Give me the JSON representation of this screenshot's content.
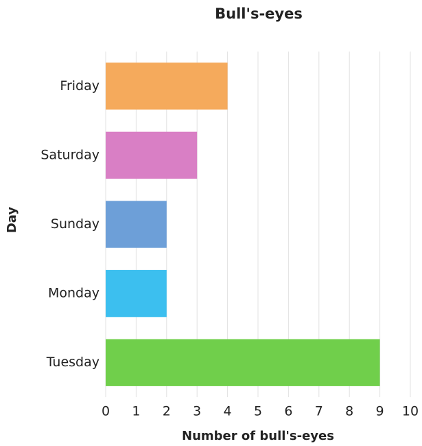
{
  "chart_data": {
    "type": "bar",
    "orientation": "horizontal",
    "title": "Bull's-eyes",
    "xlabel": "Number of bull's-eyes",
    "ylabel": "Day",
    "categories": [
      "Friday",
      "Saturday",
      "Sunday",
      "Monday",
      "Tuesday"
    ],
    "values": [
      4,
      3,
      2,
      2,
      9
    ],
    "colors": [
      "#f5aa5c",
      "#d97fc5",
      "#6d9fd8",
      "#3cbfef",
      "#70cf4b"
    ],
    "xlim": [
      0,
      10
    ],
    "xticks": [
      0,
      1,
      2,
      3,
      4,
      5,
      6,
      7,
      8,
      9,
      10
    ],
    "grid": true
  }
}
